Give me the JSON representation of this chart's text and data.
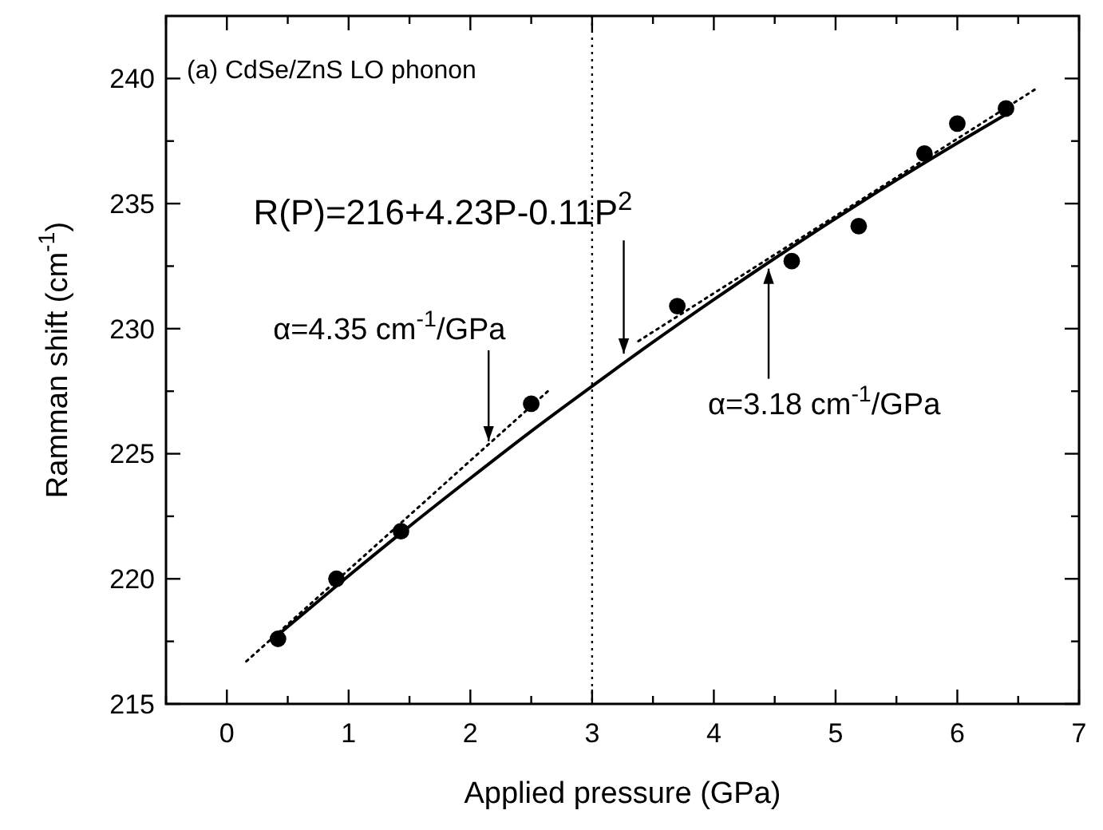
{
  "chart_data": {
    "type": "scatter",
    "title": "(a) CdSe/ZnS LO phonon",
    "xlabel": "Applied pressure (GPa)",
    "ylabel": "Ramman shift (cm$^{-1}$)",
    "xlim": [
      -0.5,
      7
    ],
    "ylim": [
      215,
      242.5
    ],
    "xticks": [
      {
        "value": -0.5,
        "label": null
      },
      0,
      {
        "value": 0.5,
        "label": null
      },
      1,
      {
        "value": 1.5,
        "label": null
      },
      2,
      {
        "value": 2.5,
        "label": null
      },
      3,
      {
        "value": 3.5,
        "label": null
      },
      4,
      {
        "value": 4.5,
        "label": null
      },
      5,
      {
        "value": 5.5,
        "label": null
      },
      6,
      {
        "value": 6.5,
        "label": null
      },
      7
    ],
    "yticks": [
      215,
      {
        "value": 217.5,
        "label": null
      },
      220,
      {
        "value": 222.5,
        "label": null
      },
      225,
      {
        "value": 227.5,
        "label": null
      },
      230,
      {
        "value": 232.5,
        "label": null
      },
      235,
      {
        "value": 237.5,
        "label": null
      },
      240
    ],
    "series": [
      {
        "marker": "circle",
        "color": "#000000",
        "x": [
          0.42,
          0.9,
          1.43,
          2.5,
          3.7,
          4.64,
          5.19,
          5.73,
          6.0,
          6.4
        ],
        "values": [
          217.6,
          220.0,
          221.9,
          227.0,
          230.9,
          232.7,
          234.1,
          237.0,
          238.2,
          238.8
        ]
      },
      {
        "type": "line",
        "line_style": "solid",
        "color": "#000000",
        "x": [
          0.42,
          1,
          1.5,
          2,
          2.5,
          3,
          3.5,
          4,
          4.5,
          5,
          5.5,
          6,
          6.4
        ],
        "values": [
          217.76,
          220.12,
          222.1,
          224.02,
          225.9,
          227.7,
          229.46,
          231.16,
          232.81,
          234.4,
          235.94,
          237.42,
          238.57
        ]
      },
      {
        "type": "line",
        "line_style": "dotted",
        "color": "#000000",
        "x": [
          0.16,
          2.66
        ],
        "values": [
          216.7,
          227.6
        ]
      },
      {
        "type": "line",
        "line_style": "dotted",
        "color": "#000000",
        "x": [
          3.38,
          6.65
        ],
        "values": [
          229.5,
          239.6
        ]
      }
    ],
    "ref_lines": [
      {
        "axis": "x",
        "value": 3,
        "line_style": "dotted",
        "color": "#000000"
      }
    ],
    "annotations": [
      {
        "text": "α=4.35 cm$^{-1}$/GPa",
        "x": 2.15,
        "y": 225.5
      },
      {
        "text": "R(P)=216+4.23P-0.11P$^{2}$",
        "x": 3.26,
        "y": 229.0
      },
      {
        "text": "α=3.18 cm$^{-1}$/GPa",
        "x": 4.45,
        "y": 232.4
      }
    ]
  }
}
